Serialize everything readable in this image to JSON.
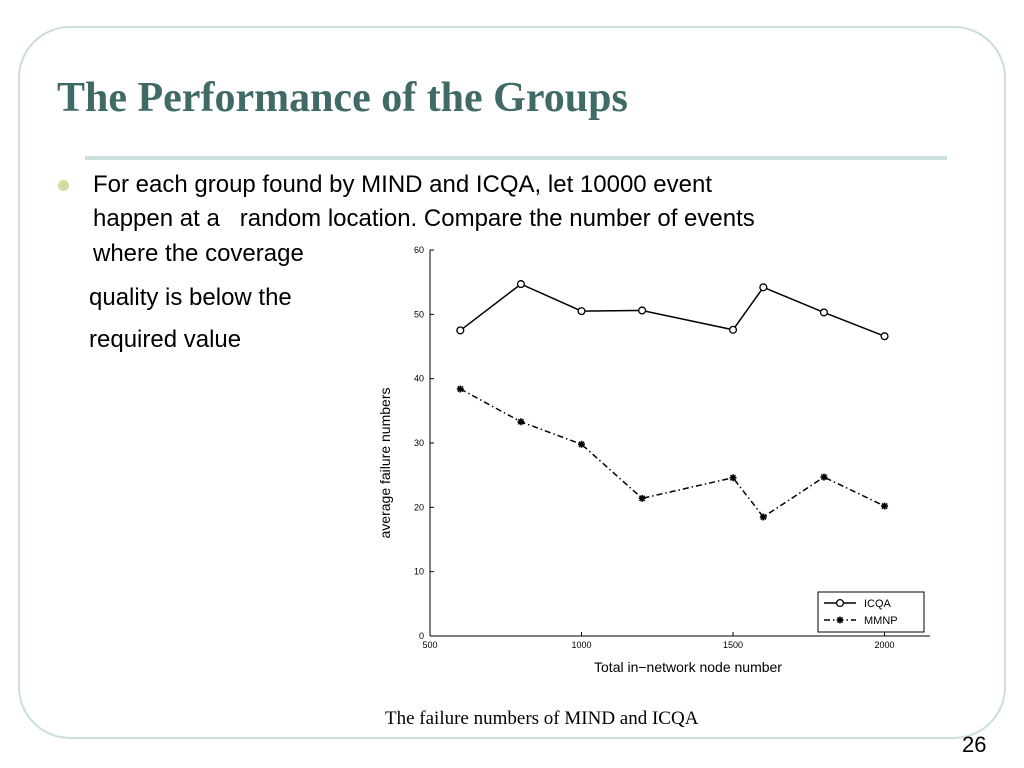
{
  "slide": {
    "title": "The Performance of the Groups",
    "bullet_lines": [
      "For each group found by MIND and ICQA, let 10000 event",
      "happen at a   random location. Compare the number of events",
      "where the coverage",
      "quality is below the",
      "required value"
    ],
    "caption": "The failure numbers of MIND and ICQA",
    "page_number": "26",
    "colors": {
      "title": "#3f6a66",
      "frame": "#c9dedd",
      "bullet": "#d2dd9c"
    }
  },
  "chart_data": {
    "type": "line",
    "title": "",
    "xlabel": "Total in−network node number",
    "ylabel": "average failure numbers",
    "xlim": [
      500,
      2150
    ],
    "ylim": [
      0,
      60
    ],
    "xticks": [
      500,
      1000,
      1500,
      2000
    ],
    "yticks": [
      0,
      10,
      20,
      30,
      40,
      50,
      60
    ],
    "grid": false,
    "legend_position": "bottom-right",
    "series": [
      {
        "name": "ICQA",
        "marker": "circle",
        "line": "solid",
        "x": [
          600,
          800,
          1000,
          1200,
          1500,
          1600,
          1800,
          2000
        ],
        "y": [
          47.5,
          54.7,
          50.5,
          50.6,
          47.6,
          54.2,
          50.3,
          46.6
        ]
      },
      {
        "name": "MMNP",
        "marker": "star",
        "line": "dashdot",
        "x": [
          600,
          800,
          1000,
          1200,
          1500,
          1600,
          1800,
          2000
        ],
        "y": [
          38.4,
          33.3,
          29.8,
          21.4,
          24.6,
          18.5,
          24.7,
          20.2
        ]
      }
    ]
  }
}
